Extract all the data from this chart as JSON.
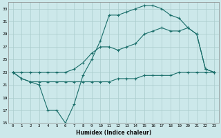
{
  "xlabel": "Humidex (Indice chaleur)",
  "ylabel": "",
  "bg_color": "#cce8ea",
  "grid_color": "#aacccc",
  "line_color": "#1a6e6a",
  "xlim": [
    -0.5,
    23.5
  ],
  "ylim": [
    15,
    34
  ],
  "xtick_labels": [
    "0",
    "1",
    "2",
    "3",
    "4",
    "5",
    "6",
    "7",
    "8",
    "9",
    "10",
    "11",
    "12",
    "13",
    "14",
    "15",
    "16",
    "17",
    "18",
    "19",
    "20",
    "21",
    "22",
    "23"
  ],
  "ytick_labels": [
    "15",
    "17",
    "19",
    "21",
    "23",
    "25",
    "27",
    "29",
    "31",
    "33"
  ],
  "ytick_vals": [
    15,
    17,
    19,
    21,
    23,
    25,
    27,
    29,
    31,
    33
  ],
  "line1_x": [
    0,
    1,
    2,
    3,
    4,
    5,
    6,
    7,
    8,
    9,
    10,
    11,
    12,
    13,
    14,
    15,
    16,
    17,
    18,
    19,
    20,
    21,
    22,
    23
  ],
  "line1_y": [
    23,
    22,
    21.5,
    21.5,
    21.5,
    21.5,
    21.5,
    21.5,
    21.5,
    21.5,
    21.5,
    21.5,
    22,
    22,
    22,
    22.5,
    22.5,
    22.5,
    22.5,
    23,
    23,
    23,
    23,
    23
  ],
  "line2_x": [
    0,
    1,
    2,
    3,
    4,
    5,
    6,
    7,
    8,
    9,
    10,
    11,
    12,
    13,
    14,
    15,
    16,
    17,
    18,
    19,
    20,
    21,
    22,
    23
  ],
  "line2_y": [
    23,
    23,
    23,
    23,
    23,
    23,
    23,
    23.5,
    24.5,
    26,
    27,
    27,
    26.5,
    27,
    27.5,
    29,
    29.5,
    30,
    29.5,
    29.5,
    30,
    29,
    23.5,
    23
  ],
  "line3_x": [
    0,
    1,
    2,
    3,
    4,
    5,
    6,
    7,
    8,
    9,
    10,
    11,
    12,
    13,
    14,
    15,
    16,
    17,
    18,
    19,
    20,
    21,
    22,
    23
  ],
  "line3_y": [
    23,
    22,
    21.5,
    21,
    17,
    17,
    15,
    18,
    22.5,
    25,
    28,
    32,
    32,
    32.5,
    33,
    33.5,
    33.5,
    33,
    32,
    31.5,
    30,
    29,
    23.5,
    23
  ]
}
